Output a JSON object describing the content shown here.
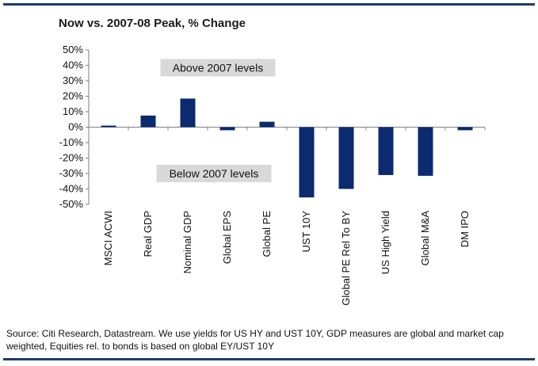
{
  "title": "Now vs. 2007-08 Peak, % Change",
  "source": "Source: Citi Research, Datastream.  We use yields for US HY and UST 10Y, GDP measures are global and market cap weighted, Equities rel. to bonds is based on global EY/UST 10Y",
  "colors": {
    "bar": "#0b2a6f",
    "rule": "#1f3a6e",
    "label_box": "#d9d9d9"
  },
  "chart_data": {
    "type": "bar",
    "title": "Now vs. 2007-08 Peak, % Change",
    "xlabel": "",
    "ylabel": "",
    "ylim": [
      -50,
      50
    ],
    "yticks": [
      50,
      40,
      30,
      20,
      10,
      0,
      -10,
      -20,
      -30,
      -40,
      -50
    ],
    "ytick_labels": [
      "50%",
      "40%",
      "30%",
      "20%",
      "10%",
      "0%",
      "-10%",
      "-20%",
      "-30%",
      "-40%",
      "-50%"
    ],
    "grid": false,
    "categories": [
      "MSCI ACWI",
      "Real GDP",
      "Nominal GDP",
      "Global EPS",
      "Global PE",
      "UST 10Y",
      "Global PE Rel To BY",
      "US High Yield",
      "Global M&A",
      "DM IPO"
    ],
    "values": [
      1,
      7.5,
      18.5,
      -2,
      3.5,
      -45.5,
      -40,
      -31,
      -31.5,
      -2
    ],
    "annotations": [
      {
        "text": "Above 2007 levels",
        "y": 38.5
      },
      {
        "text": "Below 2007 levels",
        "y": -30
      }
    ]
  }
}
